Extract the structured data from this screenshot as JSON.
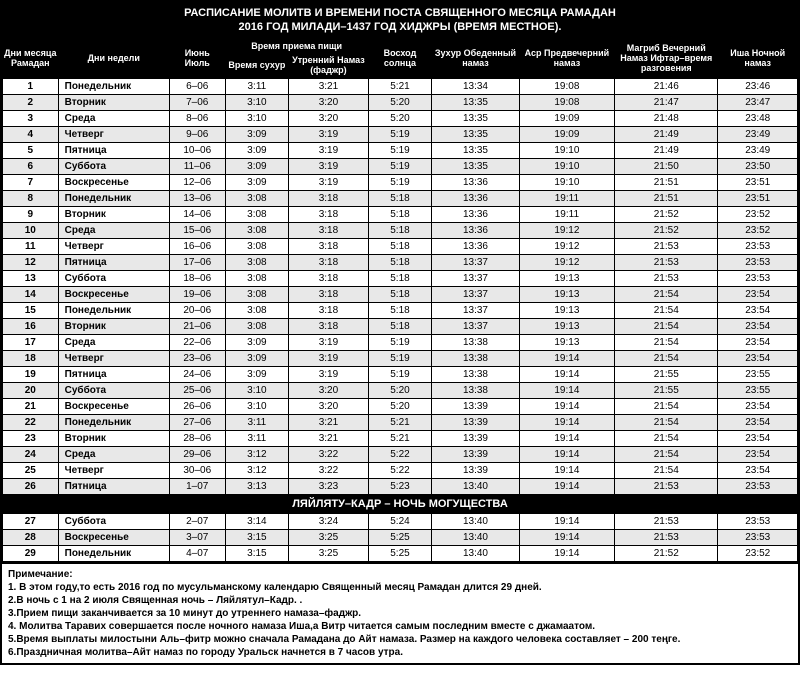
{
  "title_line1": "РАСПИСАНИЕ МОЛИТВ И ВРЕМЕНИ ПОСТА СВЯЩЕННОГО МЕСЯЦА РАМАДАН",
  "title_line2": "2016 ГОД МИЛАДИ–1437 ГОД ХИДЖРЫ (ВРЕМЯ МЕСТНОЕ).",
  "headers": {
    "day_ramadan": "Дни месяца Рамадан",
    "weekday": "Дни недели",
    "june_july": "Июнь Июль",
    "meal_time": "Время приема пищи",
    "suhur": "Время сухур",
    "fajr": "Утренний Намаз (фаджр)",
    "sunrise": "Восход солнца",
    "dhuhr": "Зухур Обеденный намаз",
    "asr": "Аср Предвечерний намаз",
    "maghrib": "Магриб Вечерний Намаз Ифтар–время разговения",
    "isha": "Иша Ночной намаз"
  },
  "rows": [
    {
      "d": "1",
      "wd": "Понедельник",
      "dt": "6–06",
      "su": "3:11",
      "fa": "3:21",
      "sr": "5:21",
      "dh": "13:34",
      "as": "19:08",
      "mg": "21:46",
      "is": "23:46"
    },
    {
      "d": "2",
      "wd": "Вторник",
      "dt": "7–06",
      "su": "3:10",
      "fa": "3:20",
      "sr": "5:20",
      "dh": "13:35",
      "as": "19:08",
      "mg": "21:47",
      "is": "23:47"
    },
    {
      "d": "3",
      "wd": "Среда",
      "dt": "8–06",
      "su": "3:10",
      "fa": "3:20",
      "sr": "5:20",
      "dh": "13:35",
      "as": "19:09",
      "mg": "21:48",
      "is": "23:48"
    },
    {
      "d": "4",
      "wd": "Четверг",
      "dt": "9–06",
      "su": "3:09",
      "fa": "3:19",
      "sr": "5:19",
      "dh": "13:35",
      "as": "19:09",
      "mg": "21:49",
      "is": "23:49"
    },
    {
      "d": "5",
      "wd": "Пятница",
      "dt": "10–06",
      "su": "3:09",
      "fa": "3:19",
      "sr": "5:19",
      "dh": "13:35",
      "as": "19:10",
      "mg": "21:49",
      "is": "23:49"
    },
    {
      "d": "6",
      "wd": "Суббота",
      "dt": "11–06",
      "su": "3:09",
      "fa": "3:19",
      "sr": "5:19",
      "dh": "13:35",
      "as": "19:10",
      "mg": "21:50",
      "is": "23:50"
    },
    {
      "d": "7",
      "wd": "Воскресенье",
      "dt": "12–06",
      "su": "3:09",
      "fa": "3:19",
      "sr": "5:19",
      "dh": "13:36",
      "as": "19:10",
      "mg": "21:51",
      "is": "23:51"
    },
    {
      "d": "8",
      "wd": "Понедельник",
      "dt": "13–06",
      "su": "3:08",
      "fa": "3:18",
      "sr": "5:18",
      "dh": "13:36",
      "as": "19:11",
      "mg": "21:51",
      "is": "23:51"
    },
    {
      "d": "9",
      "wd": "Вторник",
      "dt": "14–06",
      "su": "3:08",
      "fa": "3:18",
      "sr": "5:18",
      "dh": "13:36",
      "as": "19:11",
      "mg": "21:52",
      "is": "23:52"
    },
    {
      "d": "10",
      "wd": "Среда",
      "dt": "15–06",
      "su": "3:08",
      "fa": "3:18",
      "sr": "5:18",
      "dh": "13:36",
      "as": "19:12",
      "mg": "21:52",
      "is": "23:52"
    },
    {
      "d": "11",
      "wd": "Четверг",
      "dt": "16–06",
      "su": "3:08",
      "fa": "3:18",
      "sr": "5:18",
      "dh": "13:36",
      "as": "19:12",
      "mg": "21:53",
      "is": "23:53"
    },
    {
      "d": "12",
      "wd": "Пятница",
      "dt": "17–06",
      "su": "3:08",
      "fa": "3:18",
      "sr": "5:18",
      "dh": "13:37",
      "as": "19:12",
      "mg": "21:53",
      "is": "23:53"
    },
    {
      "d": "13",
      "wd": "Суббота",
      "dt": "18–06",
      "su": "3:08",
      "fa": "3:18",
      "sr": "5:18",
      "dh": "13:37",
      "as": "19:13",
      "mg": "21:53",
      "is": "23:53"
    },
    {
      "d": "14",
      "wd": "Воскресенье",
      "dt": "19–06",
      "su": "3:08",
      "fa": "3:18",
      "sr": "5:18",
      "dh": "13:37",
      "as": "19:13",
      "mg": "21:54",
      "is": "23:54"
    },
    {
      "d": "15",
      "wd": "Понедельник",
      "dt": "20–06",
      "su": "3:08",
      "fa": "3:18",
      "sr": "5:18",
      "dh": "13:37",
      "as": "19:13",
      "mg": "21:54",
      "is": "23:54"
    },
    {
      "d": "16",
      "wd": "Вторник",
      "dt": "21–06",
      "su": "3:08",
      "fa": "3:18",
      "sr": "5:18",
      "dh": "13:37",
      "as": "19:13",
      "mg": "21:54",
      "is": "23:54"
    },
    {
      "d": "17",
      "wd": "Среда",
      "dt": "22–06",
      "su": "3:09",
      "fa": "3:19",
      "sr": "5:19",
      "dh": "13:38",
      "as": "19:13",
      "mg": "21:54",
      "is": "23:54"
    },
    {
      "d": "18",
      "wd": "Четверг",
      "dt": "23–06",
      "su": "3:09",
      "fa": "3:19",
      "sr": "5:19",
      "dh": "13:38",
      "as": "19:14",
      "mg": "21:54",
      "is": "23:54"
    },
    {
      "d": "19",
      "wd": "Пятница",
      "dt": "24–06",
      "su": "3:09",
      "fa": "3:19",
      "sr": "5:19",
      "dh": "13:38",
      "as": "19:14",
      "mg": "21:55",
      "is": "23:55"
    },
    {
      "d": "20",
      "wd": "Суббота",
      "dt": "25–06",
      "su": "3:10",
      "fa": "3:20",
      "sr": "5:20",
      "dh": "13:38",
      "as": "19:14",
      "mg": "21:55",
      "is": "23:55"
    },
    {
      "d": "21",
      "wd": "Воскресенье",
      "dt": "26–06",
      "su": "3:10",
      "fa": "3:20",
      "sr": "5:20",
      "dh": "13:39",
      "as": "19:14",
      "mg": "21:54",
      "is": "23:54"
    },
    {
      "d": "22",
      "wd": "Понедельник",
      "dt": "27–06",
      "su": "3:11",
      "fa": "3:21",
      "sr": "5:21",
      "dh": "13:39",
      "as": "19:14",
      "mg": "21:54",
      "is": "23:54"
    },
    {
      "d": "23",
      "wd": "Вторник",
      "dt": "28–06",
      "su": "3:11",
      "fa": "3:21",
      "sr": "5:21",
      "dh": "13:39",
      "as": "19:14",
      "mg": "21:54",
      "is": "23:54"
    },
    {
      "d": "24",
      "wd": "Среда",
      "dt": "29–06",
      "su": "3:12",
      "fa": "3:22",
      "sr": "5:22",
      "dh": "13:39",
      "as": "19:14",
      "mg": "21:54",
      "is": "23:54"
    },
    {
      "d": "25",
      "wd": "Четверг",
      "dt": "30–06",
      "su": "3:12",
      "fa": "3:22",
      "sr": "5:22",
      "dh": "13:39",
      "as": "19:14",
      "mg": "21:54",
      "is": "23:54"
    },
    {
      "d": "26",
      "wd": "Пятница",
      "dt": "1–07",
      "su": "3:13",
      "fa": "3:23",
      "sr": "5:23",
      "dh": "13:40",
      "as": "19:14",
      "mg": "21:53",
      "is": "23:53"
    }
  ],
  "section_title": "ЛЯЙЛЯТУ–КАДР – НОЧЬ МОГУЩЕСТВА",
  "rows2": [
    {
      "d": "27",
      "wd": "Суббота",
      "dt": "2–07",
      "su": "3:14",
      "fa": "3:24",
      "sr": "5:24",
      "dh": "13:40",
      "as": "19:14",
      "mg": "21:53",
      "is": "23:53"
    },
    {
      "d": "28",
      "wd": "Воскресенье",
      "dt": "3–07",
      "su": "3:15",
      "fa": "3:25",
      "sr": "5:25",
      "dh": "13:40",
      "as": "19:14",
      "mg": "21:53",
      "is": "23:53"
    },
    {
      "d": "29",
      "wd": "Понедельник",
      "dt": "4–07",
      "su": "3:15",
      "fa": "3:25",
      "sr": "5:25",
      "dh": "13:40",
      "as": "19:14",
      "mg": "21:52",
      "is": "23:52"
    }
  ],
  "notes_header": "Примечание:",
  "notes": [
    "1. В этом году,то есть 2016 год по мусульманскому календарю Священный месяц Рамадан длится 29 дней.",
    "2.В ночь с 1 на 2 июля Священная ночь – Ляйлятул–Кадр. .",
    "3.Прием пищи заканчивается за 10 минут до утреннего намаза–фаджр.",
    "4. Молитва Таравих совершается после ночного намаза Иша,а Витр читается самым последним вместе с джамаатом.",
    "5.Время выплаты милостыни Аль–фитр можно сначала Рамадана до Айт намаза. Размер на каждого человека составляет – 200 теңге.",
    "6.Праздничная молитва–Айт намаз по городу Уральск  начнется в 7 часов утра."
  ],
  "col_widths": [
    "7%",
    "14%",
    "7%",
    "8%",
    "10%",
    "8%",
    "11%",
    "12%",
    "13%",
    "10%"
  ]
}
